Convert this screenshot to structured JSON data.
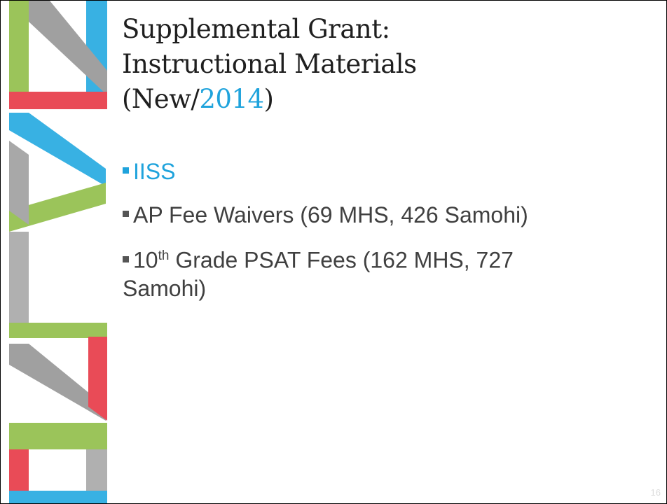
{
  "slide": {
    "title": {
      "line1": "Supplemental Grant:",
      "line2": "Instructional Materials",
      "line3": [
        "(New/",
        "2014",
        ")"
      ]
    },
    "bullets": [
      {
        "text": "IISS"
      },
      {
        "text": "AP Fee Waivers (69 MHS, 426 Samohi)"
      },
      {
        "parts": [
          "10",
          "th",
          " Grade PSAT Fees (162 MHS, 727 Samohi)"
        ]
      }
    ],
    "slide_number": "16"
  }
}
